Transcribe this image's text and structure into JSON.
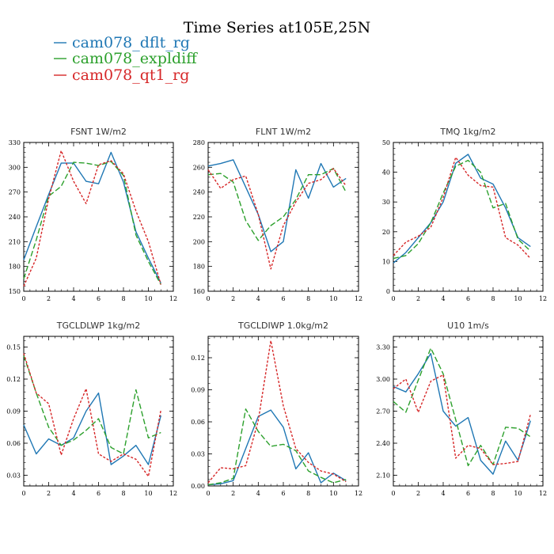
{
  "figure": {
    "title": "Time Series at105E,25N"
  },
  "legend": [
    {
      "name": "cam078_dflt_rg",
      "color": "#1f77b4"
    },
    {
      "name": "cam078_expldiff",
      "color": "#2ca02c"
    },
    {
      "name": "cam078_qt1_rg",
      "color": "#d62728"
    }
  ],
  "chart_data": [
    {
      "type": "line",
      "title": "FSNT  1W/m2",
      "xlim": [
        0,
        12
      ],
      "ylim": [
        150,
        330
      ],
      "xticks": [
        0,
        2,
        4,
        6,
        8,
        10,
        12
      ],
      "yticks": [
        150,
        180,
        210,
        240,
        270,
        300,
        330
      ],
      "ytick_decimals": 0,
      "x": [
        0,
        1,
        2,
        3,
        4,
        5,
        6,
        7,
        8,
        9,
        10,
        11
      ],
      "series": [
        {
          "name": "cam078_dflt_rg",
          "values": [
            188,
            228,
            267,
            305,
            305,
            283,
            280,
            318,
            282,
            222,
            190,
            160
          ]
        },
        {
          "name": "cam078_expldiff",
          "values": [
            165,
            212,
            265,
            277,
            306,
            305,
            302,
            307,
            290,
            218,
            186,
            158
          ]
        },
        {
          "name": "cam078_qt1_rg",
          "values": [
            156,
            190,
            262,
            320,
            283,
            256,
            303,
            308,
            292,
            247,
            210,
            158
          ]
        }
      ]
    },
    {
      "type": "line",
      "title": "FLNT  1W/m2",
      "xlim": [
        0,
        12
      ],
      "ylim": [
        160,
        280
      ],
      "xticks": [
        0,
        2,
        4,
        6,
        8,
        10,
        12
      ],
      "yticks": [
        160,
        180,
        200,
        220,
        240,
        260,
        280
      ],
      "ytick_decimals": 0,
      "x": [
        0,
        1,
        2,
        3,
        4,
        5,
        6,
        7,
        8,
        9,
        10,
        11
      ],
      "series": [
        {
          "name": "cam078_dflt_rg",
          "values": [
            261,
            263,
            266,
            244,
            222,
            192,
            200,
            258,
            235,
            263,
            244,
            251
          ]
        },
        {
          "name": "cam078_expldiff",
          "values": [
            254,
            255,
            248,
            217,
            201,
            213,
            220,
            234,
            254,
            254,
            259,
            240
          ]
        },
        {
          "name": "cam078_qt1_rg",
          "values": [
            258,
            243,
            250,
            253,
            222,
            178,
            213,
            232,
            247,
            250,
            259,
            245
          ]
        }
      ]
    },
    {
      "type": "line",
      "title": "TMQ  1kg/m2",
      "xlim": [
        0,
        12
      ],
      "ylim": [
        0,
        50
      ],
      "xticks": [
        0,
        2,
        4,
        6,
        8,
        10,
        12
      ],
      "yticks": [
        0,
        10,
        20,
        30,
        40,
        50
      ],
      "ytick_decimals": 0,
      "x": [
        0,
        1,
        2,
        3,
        4,
        5,
        6,
        7,
        8,
        9,
        10,
        11
      ],
      "series": [
        {
          "name": "cam078_dflt_rg",
          "values": [
            9.5,
            13,
            18,
            23,
            30,
            43,
            46,
            38,
            36,
            28,
            18,
            15
          ]
        },
        {
          "name": "cam078_expldiff",
          "values": [
            11,
            12,
            16,
            23,
            33,
            42,
            44,
            40,
            28,
            29.5,
            17.5,
            13.5
          ]
        },
        {
          "name": "cam078_qt1_rg",
          "values": [
            12,
            16.5,
            18.5,
            21.5,
            31.5,
            45,
            39,
            35.5,
            35,
            18,
            15.5,
            11
          ]
        }
      ]
    },
    {
      "type": "line",
      "title": "TGCLDLWP  1kg/m2",
      "xlim": [
        0,
        12
      ],
      "ylim": [
        0.02,
        0.16
      ],
      "xticks": [
        0,
        2,
        4,
        6,
        8,
        10,
        12
      ],
      "yticks": [
        0.03,
        0.06,
        0.09,
        0.12,
        0.15
      ],
      "ytick_decimals": 2,
      "x": [
        0,
        1,
        2,
        3,
        4,
        5,
        6,
        7,
        8,
        9,
        10,
        11
      ],
      "series": [
        {
          "name": "cam078_dflt_rg",
          "values": [
            0.077,
            0.05,
            0.064,
            0.058,
            0.065,
            0.09,
            0.107,
            0.04,
            0.048,
            0.058,
            0.04,
            0.086
          ]
        },
        {
          "name": "cam078_expldiff",
          "values": [
            0.142,
            0.107,
            0.075,
            0.058,
            0.063,
            0.072,
            0.083,
            0.056,
            0.05,
            0.11,
            0.065,
            0.07
          ]
        },
        {
          "name": "cam078_qt1_rg",
          "values": [
            0.144,
            0.107,
            0.097,
            0.049,
            0.083,
            0.111,
            0.05,
            0.043,
            0.05,
            0.045,
            0.029,
            0.091
          ]
        }
      ]
    },
    {
      "type": "line",
      "title": "TGCLDIWP  1.0kg/m2",
      "xlim": [
        0,
        12
      ],
      "ylim": [
        0,
        0.14
      ],
      "xticks": [
        0,
        2,
        4,
        6,
        8,
        10,
        12
      ],
      "yticks": [
        0.0,
        0.03,
        0.06,
        0.09,
        0.12
      ],
      "ytick_decimals": 2,
      "x": [
        0,
        1,
        2,
        3,
        4,
        5,
        6,
        7,
        8,
        9,
        10,
        11
      ],
      "series": [
        {
          "name": "cam078_dflt_rg",
          "values": [
            0.001,
            0.002,
            0.005,
            0.035,
            0.065,
            0.071,
            0.055,
            0.016,
            0.031,
            0.003,
            0.012,
            0.005
          ]
        },
        {
          "name": "cam078_expldiff",
          "values": [
            0.001,
            0.003,
            0.007,
            0.072,
            0.051,
            0.037,
            0.039,
            0.033,
            0.014,
            0.008,
            0.003,
            0.006
          ]
        },
        {
          "name": "cam078_qt1_rg",
          "values": [
            0.003,
            0.017,
            0.016,
            0.019,
            0.061,
            0.136,
            0.075,
            0.035,
            0.022,
            0.014,
            0.011,
            0.004
          ]
        }
      ]
    },
    {
      "type": "line",
      "title": "U10  1m/s",
      "xlim": [
        0,
        12
      ],
      "ylim": [
        2.0,
        3.4
      ],
      "xticks": [
        0,
        2,
        4,
        6,
        8,
        10,
        12
      ],
      "yticks": [
        2.1,
        2.4,
        2.7,
        3.0,
        3.3
      ],
      "ytick_decimals": 2,
      "x": [
        0,
        1,
        2,
        3,
        4,
        5,
        6,
        7,
        8,
        9,
        10,
        11
      ],
      "series": [
        {
          "name": "cam078_dflt_rg",
          "values": [
            2.93,
            2.88,
            3.05,
            3.24,
            2.7,
            2.56,
            2.64,
            2.24,
            2.11,
            2.42,
            2.24,
            2.61
          ]
        },
        {
          "name": "cam078_expldiff",
          "values": [
            2.79,
            2.69,
            2.99,
            3.29,
            3.05,
            2.62,
            2.19,
            2.38,
            2.2,
            2.55,
            2.54,
            2.46
          ]
        },
        {
          "name": "cam078_qt1_rg",
          "values": [
            2.91,
            3.0,
            2.69,
            2.98,
            3.04,
            2.26,
            2.38,
            2.35,
            2.2,
            2.21,
            2.23,
            2.67
          ]
        }
      ]
    }
  ]
}
